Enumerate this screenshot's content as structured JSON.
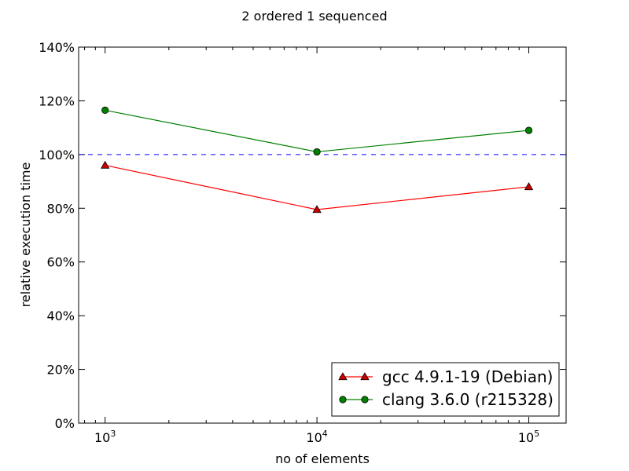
{
  "chart_data": {
    "type": "line",
    "title": "2 ordered 1 sequenced",
    "xlabel": "no of elements",
    "ylabel": "relative execution time",
    "xscale": "log",
    "xlim": [
      750,
      150000
    ],
    "ylim": [
      0,
      140
    ],
    "x": [
      1000,
      10000,
      100000
    ],
    "x_ticks": [
      {
        "value": 1000,
        "base": "10",
        "exp": "3"
      },
      {
        "value": 10000,
        "base": "10",
        "exp": "4"
      },
      {
        "value": 100000,
        "base": "10",
        "exp": "5"
      }
    ],
    "y_ticks": [
      {
        "value": 0,
        "label": "0%"
      },
      {
        "value": 20,
        "label": "20%"
      },
      {
        "value": 40,
        "label": "40%"
      },
      {
        "value": 60,
        "label": "60%"
      },
      {
        "value": 80,
        "label": "80%"
      },
      {
        "value": 100,
        "label": "100%"
      },
      {
        "value": 120,
        "label": "120%"
      },
      {
        "value": 140,
        "label": "140%"
      }
    ],
    "reference_line": {
      "value": 100,
      "color": "#0000ff",
      "style": "dashed"
    },
    "series": [
      {
        "name": "gcc 4.9.1-19 (Debian)",
        "color": "#ff0000",
        "marker_color": "#cc0000",
        "marker": "triangle",
        "values": [
          96,
          79.5,
          88
        ]
      },
      {
        "name": "clang 3.6.0 (r215328)",
        "color": "#008000",
        "marker_color": "#008000",
        "marker": "circle",
        "values": [
          116.5,
          101,
          109
        ]
      }
    ],
    "legend": {
      "position": "bottom-right"
    },
    "grid": false
  }
}
